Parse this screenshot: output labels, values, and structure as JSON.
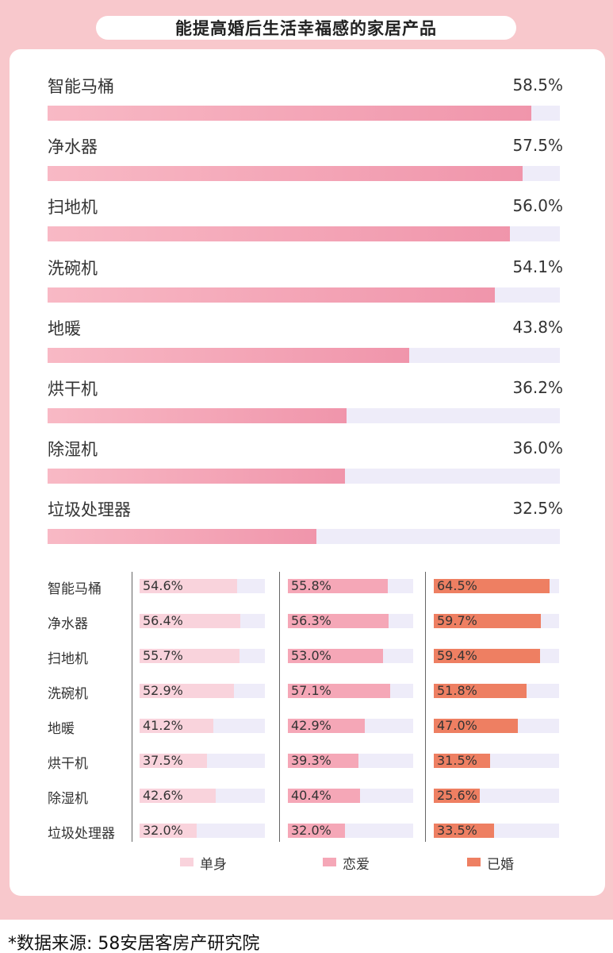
{
  "title": "能提高婚后生活幸福感的家居产品",
  "chart_data": [
    {
      "type": "bar",
      "orientation": "horizontal",
      "categories": [
        "智能马桶",
        "净水器",
        "扫地机",
        "洗碗机",
        "地暖",
        "烘干机",
        "除湿机",
        "垃圾处理器"
      ],
      "values": [
        58.5,
        57.5,
        56.0,
        54.1,
        43.8,
        36.2,
        36.0,
        32.5
      ],
      "value_labels": [
        "58.5%",
        "57.5%",
        "56.0%",
        "54.1%",
        "43.8%",
        "36.2%",
        "36.0%",
        "32.5%"
      ],
      "xlim": [
        0,
        62
      ],
      "title": "能提高婚后生活幸福感的家居产品"
    },
    {
      "type": "bar",
      "orientation": "horizontal",
      "categories": [
        "智能马桶",
        "净水器",
        "扫地机",
        "洗碗机",
        "地暖",
        "烘干机",
        "除湿机",
        "垃圾处理器"
      ],
      "xlim": [
        0,
        70
      ],
      "legend_position": "bottom",
      "series": [
        {
          "name": "单身",
          "color": "#f9d3dc",
          "values": [
            54.6,
            56.4,
            55.7,
            52.9,
            41.2,
            37.5,
            42.6,
            32.0
          ],
          "value_labels": [
            "54.6%",
            "56.4%",
            "55.7%",
            "52.9%",
            "41.2%",
            "37.5%",
            "42.6%",
            "32.0%"
          ]
        },
        {
          "name": "恋爱",
          "color": "#f5a7b7",
          "values": [
            55.8,
            56.3,
            53.0,
            57.1,
            42.9,
            39.3,
            40.4,
            32.0
          ],
          "value_labels": [
            "55.8%",
            "56.3%",
            "53.0%",
            "57.1%",
            "42.9%",
            "39.3%",
            "40.4%",
            "32.0%"
          ]
        },
        {
          "name": "已婚",
          "color": "#ee7f62",
          "values": [
            64.5,
            59.7,
            59.4,
            51.8,
            47.0,
            31.5,
            25.6,
            33.5
          ],
          "value_labels": [
            "64.5%",
            "59.7%",
            "59.4%",
            "51.8%",
            "47.0%",
            "31.5%",
            "25.6%",
            "33.5%"
          ]
        }
      ]
    }
  ],
  "source": "*数据来源: 58安居客房产研究院"
}
